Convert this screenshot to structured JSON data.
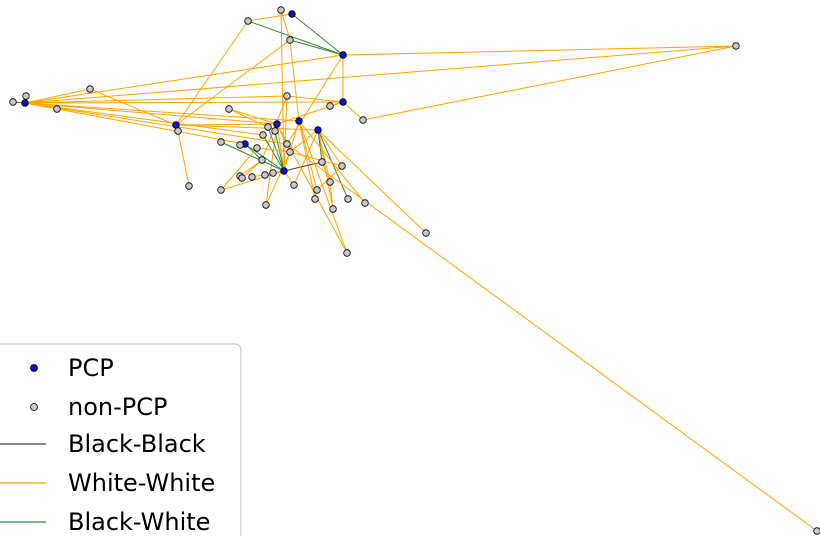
{
  "legend": {
    "items": [
      {
        "label": "PCP",
        "kind": "node",
        "fill": "#1010cc"
      },
      {
        "label": "non-PCP",
        "kind": "node",
        "fill": "#c8c8c8"
      },
      {
        "label": "Black-Black",
        "kind": "line",
        "color": "#444444"
      },
      {
        "label": "White-White",
        "kind": "line",
        "color": "#ffa500"
      },
      {
        "label": "Black-White",
        "kind": "line",
        "color": "#2e8b2e"
      }
    ]
  },
  "colors": {
    "pcp": "#1010cc",
    "non_pcp": "#c8c8c8",
    "black_black": "#444444",
    "white_white": "#ffa500",
    "black_white": "#2e8b2e"
  }
}
